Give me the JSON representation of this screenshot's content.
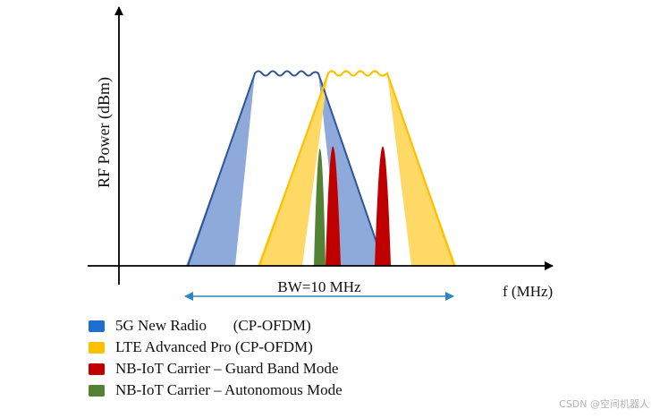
{
  "diagram": {
    "ylabel": "RF Power (dBm)",
    "xlabel": "f (MHz)",
    "bandwidth_label": "BW=10 MHz"
  },
  "legend": [
    {
      "label": "5G New Radio       (CP-OFDM)",
      "color": "#1f6fd1"
    },
    {
      "label": "LTE Advanced Pro (CP-OFDM)",
      "color": "#ffc000"
    },
    {
      "label": "NB-IoT Carrier – Guard Band Mode",
      "color": "#c00000"
    },
    {
      "label": "NB-IoT Carrier – Autonomous Mode",
      "color": "#548235"
    }
  ],
  "colors": {
    "nr_fill": "#8eaadb",
    "nr_line": "#2f5597",
    "lte_fill": "#ffd966",
    "lte_line": "#ffc000",
    "nb_guard": "#c00000",
    "nb_autonomous": "#548235",
    "bw_arrow": "#2e86c1"
  },
  "watermark": "CSDN @空间机器人"
}
